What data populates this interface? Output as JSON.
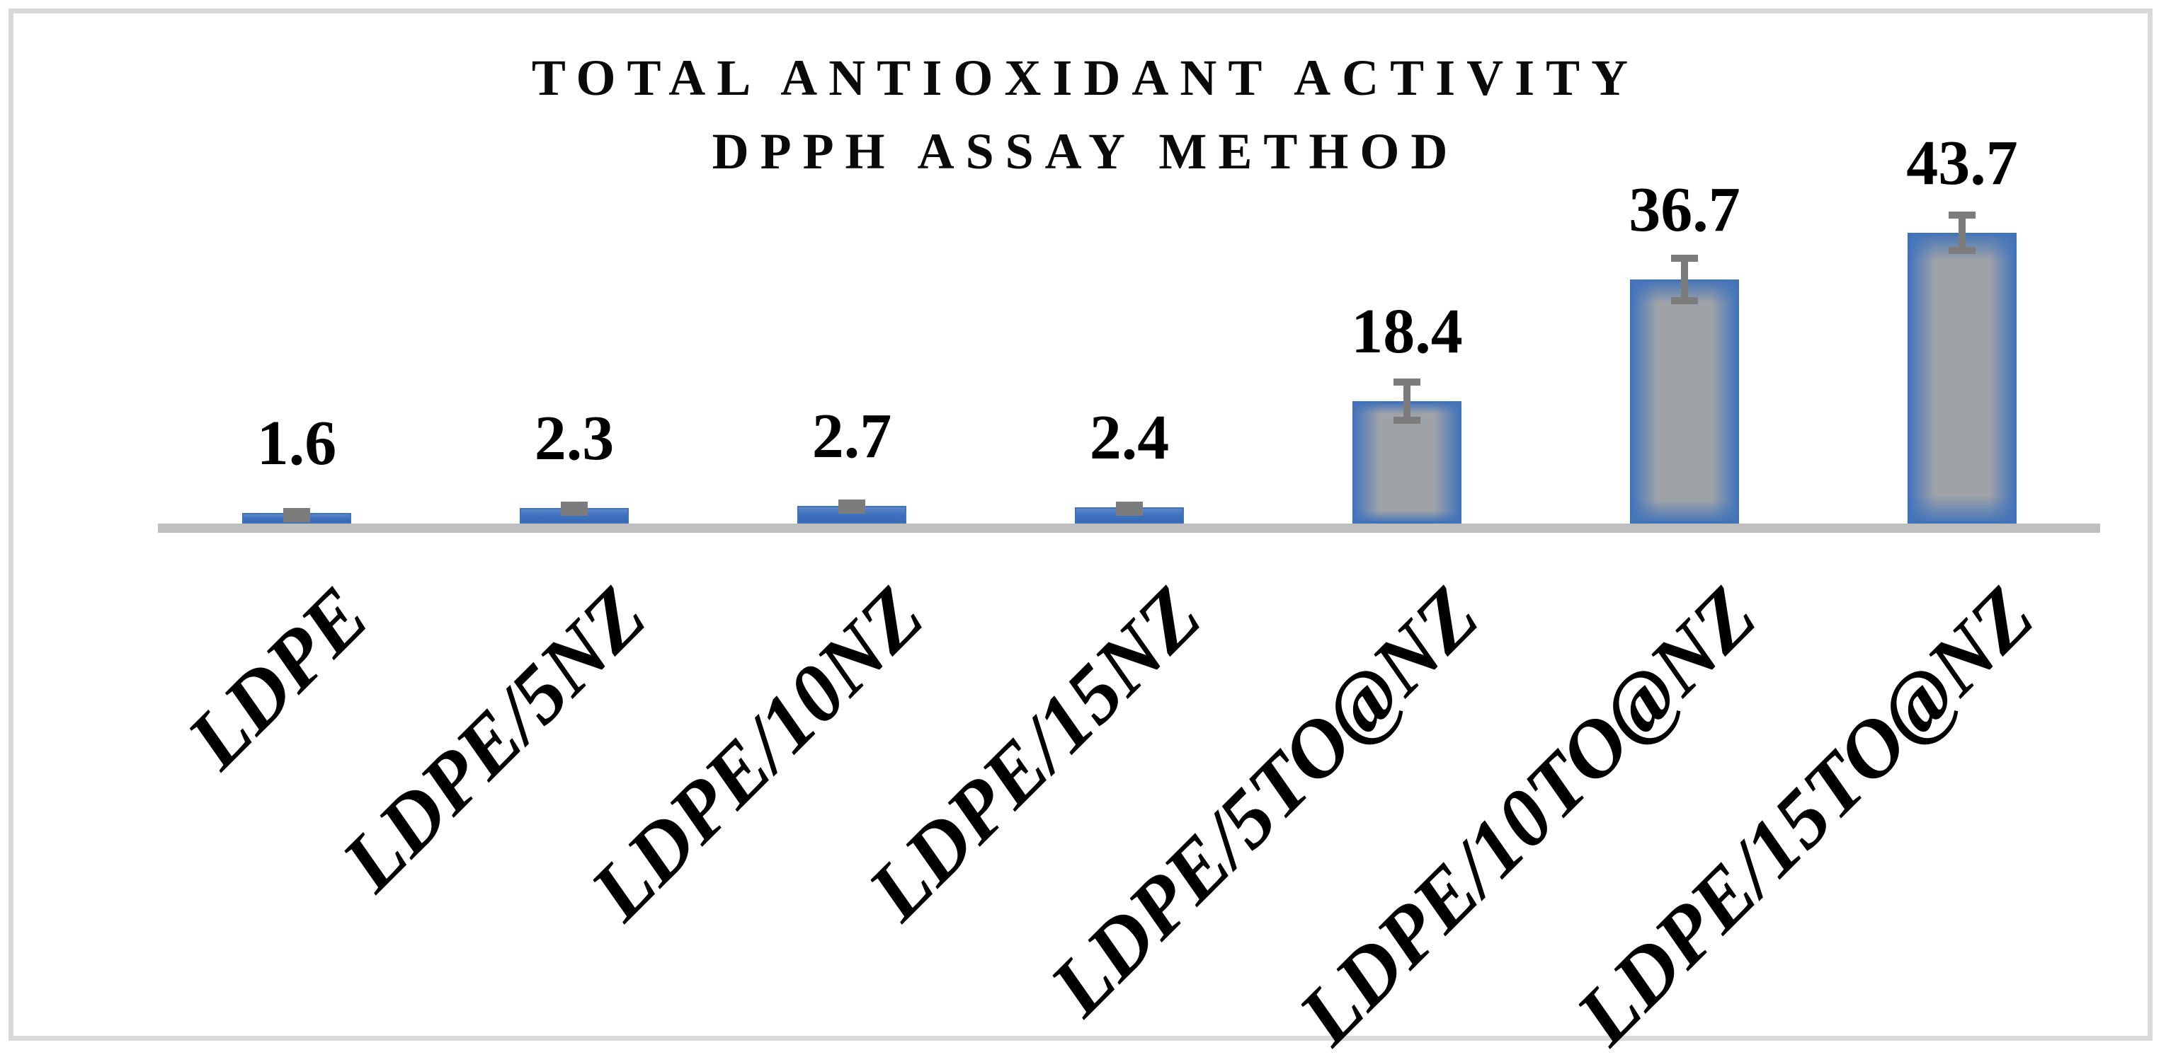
{
  "chart_data": {
    "type": "bar",
    "title": "TOTAL ANTIOXIDANT ACTIVITY DPPH ASSAY METHOD",
    "title_lines": [
      "TOTAL ANTIOXIDANT ACTIVITY",
      "DPPH ASSAY METHOD"
    ],
    "categories": [
      "LDPE",
      "LDPE/5NZ",
      "LDPE/10NZ",
      "LDPE/15NZ",
      "LDPE/5TO@NZ",
      "LDPE/10TO@NZ",
      "LDPE/15TO@NZ"
    ],
    "values": [
      1.6,
      2.3,
      2.7,
      2.4,
      18.4,
      36.7,
      43.7
    ],
    "data_labels": [
      "1.6",
      "2.3",
      "2.7",
      "2.4",
      "18.4",
      "36.7",
      "43.7"
    ],
    "error_bars": [
      0.7,
      1.0,
      0.9,
      0.9,
      3.4,
      3.7,
      3.2
    ],
    "xlabel": "",
    "ylabel": "",
    "ylim": [
      0,
      47
    ],
    "grid": false,
    "legend": false,
    "y_axis_labels_visible": false,
    "colors": {
      "bar_edge": "#4273b9",
      "bar_fill_center": "#9fa3a8",
      "bar_small_fill": "#3d6fbd",
      "error_bar": "#7c7c7c",
      "axis_line": "#bfbfbf",
      "text": "#000000",
      "frame_border": "#d9d9d9",
      "background": "#ffffff"
    }
  }
}
